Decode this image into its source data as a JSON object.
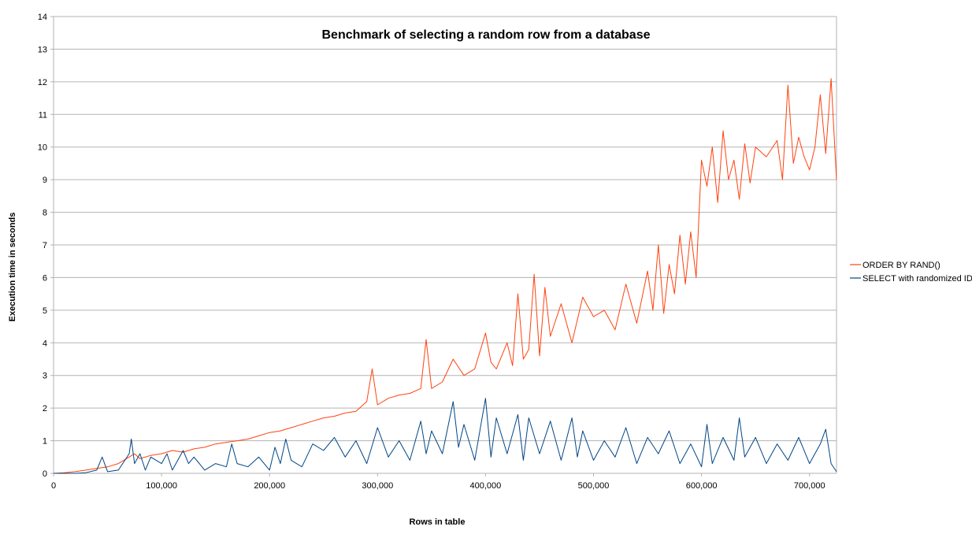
{
  "chart_data": {
    "type": "line",
    "title": "Benchmark of selecting a random row from a database",
    "xlabel": "Rows in table",
    "ylabel": "Execution time in seconds",
    "xlim": [
      0,
      725000
    ],
    "ylim": [
      0,
      14
    ],
    "x_ticks": [
      0,
      100000,
      200000,
      300000,
      400000,
      500000,
      600000,
      700000
    ],
    "x_tick_labels": [
      "0",
      "100,000",
      "200,000",
      "300,000",
      "400,000",
      "500,000",
      "600,000",
      "700,000"
    ],
    "y_ticks": [
      0,
      1,
      2,
      3,
      4,
      5,
      6,
      7,
      8,
      9,
      10,
      11,
      12,
      13,
      14
    ],
    "y_tick_labels": [
      "0",
      "1",
      "2",
      "3",
      "4",
      "5",
      "6",
      "7",
      "8",
      "9",
      "10",
      "11",
      "12",
      "13",
      "14"
    ],
    "grid": "horizontal",
    "legend_position": "right",
    "series": [
      {
        "name": "ORDER BY RAND()",
        "color": "#ff420e",
        "x": [
          0,
          10000,
          20000,
          30000,
          40000,
          50000,
          60000,
          70000,
          75000,
          80000,
          90000,
          100000,
          110000,
          120000,
          130000,
          140000,
          150000,
          160000,
          170000,
          180000,
          190000,
          200000,
          210000,
          220000,
          230000,
          240000,
          250000,
          260000,
          270000,
          280000,
          290000,
          295000,
          300000,
          310000,
          320000,
          330000,
          340000,
          345000,
          350000,
          360000,
          370000,
          380000,
          390000,
          400000,
          405000,
          410000,
          420000,
          425000,
          430000,
          435000,
          440000,
          445000,
          450000,
          455000,
          460000,
          470000,
          480000,
          490000,
          500000,
          510000,
          520000,
          530000,
          540000,
          550000,
          555000,
          560000,
          565000,
          570000,
          575000,
          580000,
          585000,
          590000,
          595000,
          600000,
          605000,
          610000,
          615000,
          620000,
          625000,
          630000,
          635000,
          640000,
          645000,
          650000,
          660000,
          670000,
          675000,
          680000,
          685000,
          690000,
          695000,
          700000,
          705000,
          710000,
          715000,
          720000,
          725000
        ],
        "y": [
          0,
          0.02,
          0.05,
          0.1,
          0.15,
          0.2,
          0.3,
          0.5,
          0.6,
          0.45,
          0.55,
          0.6,
          0.7,
          0.65,
          0.75,
          0.8,
          0.9,
          0.95,
          1.0,
          1.05,
          1.15,
          1.25,
          1.3,
          1.4,
          1.5,
          1.6,
          1.7,
          1.75,
          1.85,
          1.9,
          2.2,
          3.2,
          2.1,
          2.3,
          2.4,
          2.45,
          2.6,
          4.1,
          2.6,
          2.8,
          3.5,
          3.0,
          3.2,
          4.3,
          3.4,
          3.2,
          4.0,
          3.3,
          5.5,
          3.5,
          3.8,
          6.1,
          3.6,
          5.7,
          4.2,
          5.2,
          4.0,
          5.4,
          4.8,
          5.0,
          4.4,
          5.8,
          4.6,
          6.2,
          5.0,
          7.0,
          4.9,
          6.4,
          5.5,
          7.3,
          5.8,
          7.4,
          6.0,
          9.6,
          8.8,
          10.0,
          8.3,
          10.5,
          9.0,
          9.6,
          8.4,
          10.1,
          8.9,
          10.0,
          9.7,
          10.2,
          9.0,
          11.9,
          9.5,
          10.3,
          9.7,
          9.3,
          10.0,
          11.6,
          9.8,
          12.1,
          9.0
        ]
      },
      {
        "name": "SELECT with randomized ID",
        "color": "#004586",
        "x": [
          0,
          10000,
          20000,
          30000,
          40000,
          45000,
          50000,
          60000,
          70000,
          72000,
          75000,
          80000,
          85000,
          90000,
          100000,
          105000,
          110000,
          120000,
          125000,
          130000,
          140000,
          150000,
          160000,
          165000,
          170000,
          180000,
          190000,
          200000,
          205000,
          210000,
          215000,
          220000,
          230000,
          240000,
          250000,
          260000,
          270000,
          280000,
          290000,
          300000,
          310000,
          320000,
          330000,
          340000,
          345000,
          350000,
          360000,
          370000,
          375000,
          380000,
          390000,
          400000,
          405000,
          410000,
          420000,
          430000,
          435000,
          440000,
          450000,
          460000,
          470000,
          480000,
          485000,
          490000,
          500000,
          510000,
          520000,
          530000,
          540000,
          550000,
          560000,
          570000,
          580000,
          590000,
          600000,
          605000,
          610000,
          620000,
          630000,
          635000,
          640000,
          650000,
          660000,
          670000,
          680000,
          690000,
          700000,
          710000,
          715000,
          720000,
          725000
        ],
        "y": [
          0,
          0,
          0,
          0.02,
          0.1,
          0.5,
          0.05,
          0.1,
          0.6,
          1.05,
          0.3,
          0.6,
          0.1,
          0.5,
          0.3,
          0.6,
          0.1,
          0.7,
          0.3,
          0.5,
          0.1,
          0.3,
          0.2,
          0.9,
          0.3,
          0.2,
          0.5,
          0.1,
          0.8,
          0.3,
          1.05,
          0.4,
          0.2,
          0.9,
          0.7,
          1.1,
          0.5,
          1.0,
          0.3,
          1.4,
          0.5,
          1.0,
          0.4,
          1.6,
          0.6,
          1.3,
          0.6,
          2.2,
          0.8,
          1.5,
          0.4,
          2.3,
          0.5,
          1.7,
          0.6,
          1.8,
          0.4,
          1.7,
          0.6,
          1.6,
          0.4,
          1.7,
          0.5,
          1.3,
          0.4,
          1.0,
          0.5,
          1.4,
          0.3,
          1.1,
          0.6,
          1.3,
          0.3,
          0.9,
          0.2,
          1.5,
          0.3,
          1.1,
          0.4,
          1.7,
          0.5,
          1.1,
          0.3,
          0.9,
          0.4,
          1.1,
          0.3,
          0.9,
          1.35,
          0.3,
          0.05
        ]
      }
    ]
  }
}
